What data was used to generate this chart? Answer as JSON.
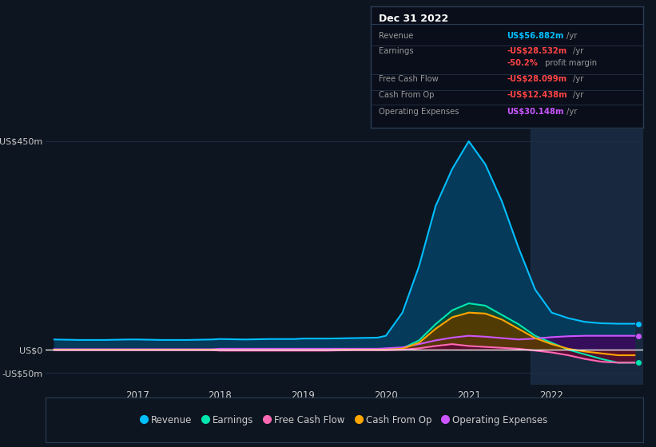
{
  "background_color": "#0d1520",
  "plot_bg_color": "#0d1520",
  "grid_color": "#1e2d45",
  "years": [
    2016.0,
    2016.3,
    2016.6,
    2016.9,
    2017.0,
    2017.3,
    2017.6,
    2017.9,
    2018.0,
    2018.3,
    2018.6,
    2018.9,
    2019.0,
    2019.3,
    2019.6,
    2019.9,
    2020.0,
    2020.2,
    2020.4,
    2020.6,
    2020.8,
    2021.0,
    2021.2,
    2021.4,
    2021.6,
    2021.8,
    2022.0,
    2022.2,
    2022.4,
    2022.6,
    2022.8,
    2023.0
  ],
  "revenue": [
    22,
    21,
    21,
    22,
    22,
    21,
    21,
    22,
    23,
    22,
    23,
    23,
    24,
    24,
    25,
    26,
    30,
    80,
    180,
    310,
    390,
    450,
    400,
    320,
    220,
    130,
    80,
    68,
    60,
    57,
    56,
    56
  ],
  "earnings": [
    0,
    0,
    0,
    0,
    0,
    0,
    0,
    0,
    -1,
    -1,
    -1,
    -1,
    -1,
    -1,
    0,
    0,
    0,
    3,
    20,
    55,
    85,
    100,
    95,
    75,
    55,
    30,
    15,
    0,
    -10,
    -20,
    -28,
    -28
  ],
  "free_cash": [
    -1,
    -1,
    -1,
    -1,
    -1,
    -1,
    -1,
    -1,
    -2,
    -2,
    -2,
    -2,
    -2,
    -2,
    -1,
    -1,
    -1,
    0,
    3,
    8,
    12,
    8,
    6,
    4,
    2,
    -2,
    -6,
    -12,
    -20,
    -26,
    -28,
    -28
  ],
  "cash_from_op": [
    0,
    0,
    0,
    0,
    0,
    0,
    0,
    0,
    -1,
    -1,
    -1,
    -1,
    -1,
    -1,
    0,
    0,
    0,
    2,
    15,
    45,
    70,
    80,
    78,
    65,
    45,
    25,
    12,
    2,
    -4,
    -8,
    -12,
    -12
  ],
  "op_expenses": [
    1,
    1,
    1,
    1,
    1,
    1,
    1,
    1,
    2,
    2,
    2,
    2,
    2,
    2,
    2,
    2,
    3,
    5,
    12,
    20,
    26,
    30,
    28,
    25,
    22,
    24,
    27,
    29,
    30,
    30,
    30,
    30
  ],
  "ylim": [
    -75,
    475
  ],
  "yticks": [
    -50,
    0,
    450
  ],
  "ytick_labels": [
    "-US$50m",
    "US$0",
    "US$450m"
  ],
  "xticks": [
    2017,
    2018,
    2019,
    2020,
    2021,
    2022
  ],
  "highlight_x_start": 2021.75,
  "highlight_x_end": 2023.1,
  "xlim_start": 2015.9,
  "xlim_end": 2023.1,
  "revenue_color": "#00bfff",
  "earnings_color": "#00e6b0",
  "free_cash_color": "#ff69b4",
  "cash_from_op_color": "#ffa500",
  "op_expenses_color": "#cc55ff",
  "revenue_fill": "#063a5a",
  "earnings_fill": "#064a3a",
  "free_cash_fill": "#5a0a30",
  "cash_from_op_fill": "#5a3a00",
  "op_expenses_fill": "#3a0a5a",
  "legend": [
    {
      "label": "Revenue",
      "color": "#00bfff"
    },
    {
      "label": "Earnings",
      "color": "#00e6b0"
    },
    {
      "label": "Free Cash Flow",
      "color": "#ff69b4"
    },
    {
      "label": "Cash From Op",
      "color": "#ffa500"
    },
    {
      "label": "Operating Expenses",
      "color": "#cc55ff"
    }
  ],
  "infobox": {
    "date": "Dec 31 2022",
    "rows": [
      {
        "label": "Revenue",
        "value": "US$56.882m",
        "unit": "/yr",
        "value_color": "#00bfff",
        "sep_after": true
      },
      {
        "label": "Earnings",
        "value": "-US$28.532m",
        "unit": "/yr",
        "value_color": "#ff4444",
        "sep_after": false
      },
      {
        "label": "",
        "value": "-50.2%",
        "unit": " profit margin",
        "value_color": "#ff4444",
        "sep_after": true
      },
      {
        "label": "Free Cash Flow",
        "value": "-US$28.099m",
        "unit": "/yr",
        "value_color": "#ff4444",
        "sep_after": true
      },
      {
        "label": "Cash From Op",
        "value": "-US$12.438m",
        "unit": "/yr",
        "value_color": "#ff4444",
        "sep_after": true
      },
      {
        "label": "Operating Expenses",
        "value": "US$30.148m",
        "unit": "/yr",
        "value_color": "#cc55ff",
        "sep_after": false
      }
    ]
  }
}
